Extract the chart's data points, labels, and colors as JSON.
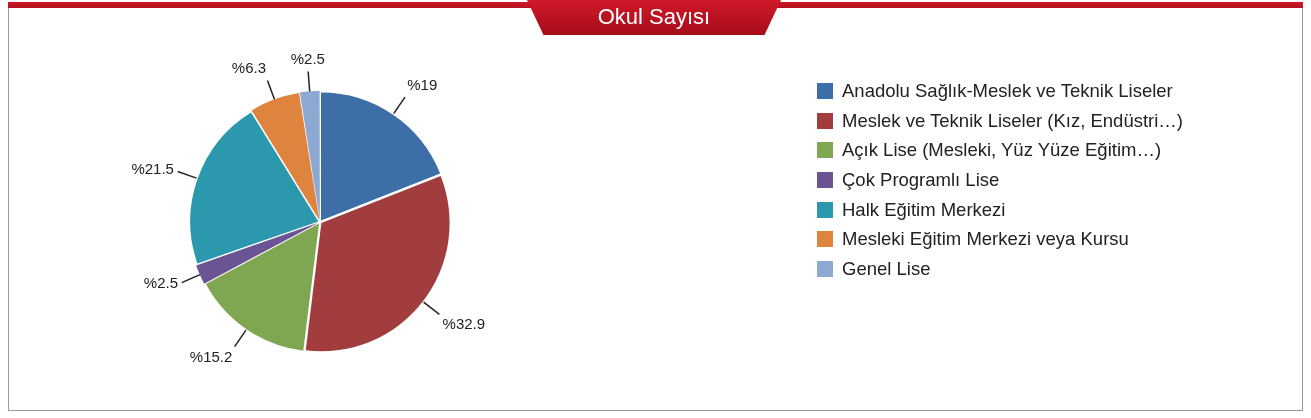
{
  "chart_data": {
    "type": "pie",
    "title": "Okul Sayısı",
    "categories": [
      "Anadolu Sağlık-Meslek ve Teknik Liseler",
      "Meslek ve Teknik Liseler (Kız, Endüstri…)",
      "Açık Lise (Mesleki, Yüz Yüze Eğitim…)",
      "Çok Programlı Lise",
      "Halk Eğitim Merkezi",
      "Mesleki Eğitim Merkezi veya Kursu",
      "Genel Lise"
    ],
    "values": [
      19,
      32.9,
      15.2,
      2.5,
      21.5,
      6.3,
      2.5
    ],
    "colors": [
      "#3d6ea8",
      "#a23d3f",
      "#7fa650",
      "#6b5494",
      "#2b98ad",
      "#df843f",
      "#8da8d1"
    ],
    "value_labels": [
      "%19",
      "%32.9",
      "%15.2",
      "%2.5",
      "%21.5",
      "%6.3",
      "%2.5"
    ],
    "legend": "right"
  }
}
